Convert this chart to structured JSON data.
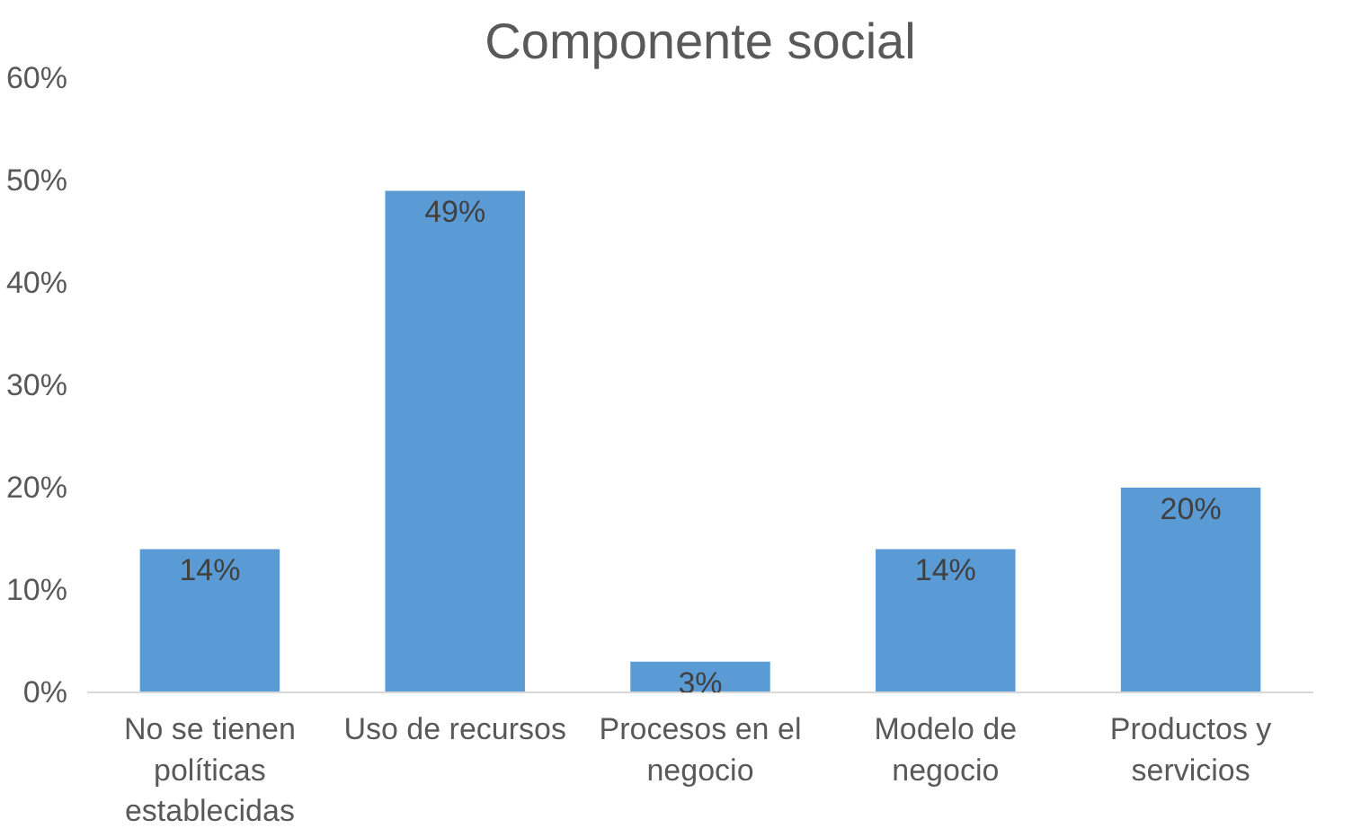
{
  "chart_data": {
    "type": "bar",
    "title": "Componente social",
    "categories": [
      "No se tienen políticas establecidas",
      "Uso de recursos",
      "Procesos en el negocio",
      "Modelo de negocio",
      "Productos y servicios"
    ],
    "values": [
      14,
      49,
      3,
      14,
      20
    ],
    "color": "#5b9bd5",
    "value_labels": [
      "14%",
      "49%",
      "3%",
      "14%",
      "20%"
    ],
    "ylim": [
      0,
      60
    ],
    "yticks": [
      {
        "value": 0,
        "label": "0%"
      },
      {
        "value": 10,
        "label": "10%"
      },
      {
        "value": 20,
        "label": "20%"
      },
      {
        "value": 30,
        "label": "30%"
      },
      {
        "value": 40,
        "label": "40%"
      },
      {
        "value": 50,
        "label": "50%"
      },
      {
        "value": 60,
        "label": "60%"
      }
    ],
    "grid": false
  }
}
